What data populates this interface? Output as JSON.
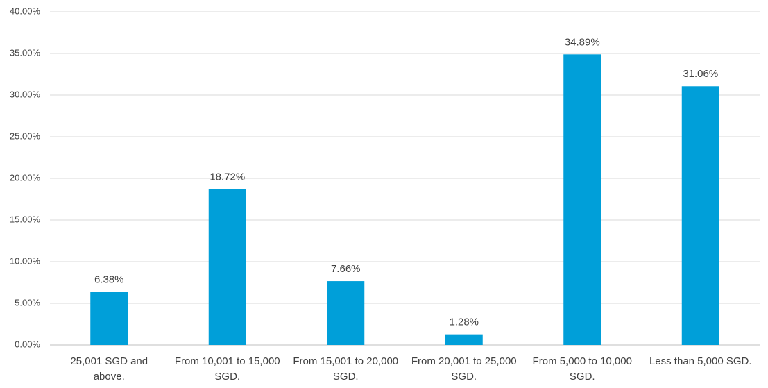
{
  "chart_data": {
    "type": "bar",
    "categories": [
      "25,001 SGD and above.",
      "From 10,001 to 15,000 SGD.",
      "From 15,001 to 20,000 SGD.",
      "From 20,001 to 25,000 SGD.",
      "From 5,000 to 10,000 SGD.",
      "Less than 5,000 SGD."
    ],
    "values": [
      6.38,
      18.72,
      7.66,
      1.28,
      34.89,
      31.06
    ],
    "value_labels": [
      "6.38%",
      "18.72%",
      "7.66%",
      "1.28%",
      "34.89%",
      "31.06%"
    ],
    "color": "#009fd9",
    "ylim": [
      0,
      40
    ],
    "yticks": [
      {
        "value": 0,
        "label": "0.00%"
      },
      {
        "value": 5,
        "label": "5.00%"
      },
      {
        "value": 10,
        "label": "10.00%"
      },
      {
        "value": 15,
        "label": "15.00%"
      },
      {
        "value": 20,
        "label": "20.00%"
      },
      {
        "value": 25,
        "label": "25.00%"
      },
      {
        "value": 30,
        "label": "30.00%"
      },
      {
        "value": 35,
        "label": "35.00%"
      },
      {
        "value": 40,
        "label": "40.00%"
      }
    ],
    "grid": true
  }
}
